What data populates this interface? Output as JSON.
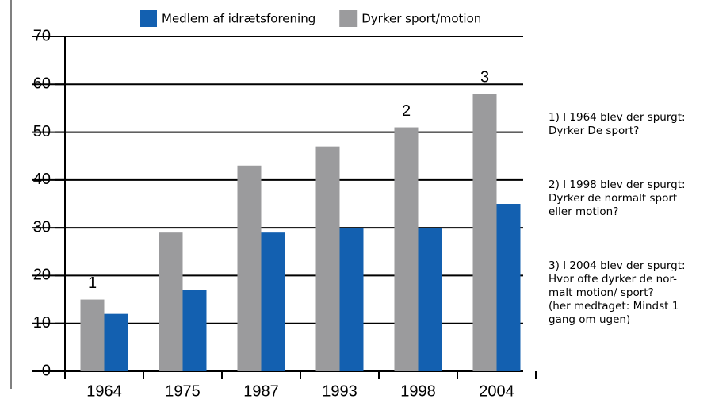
{
  "chart_data": {
    "type": "bar",
    "categories": [
      "1964",
      "1975",
      "1987",
      "1993",
      "1998",
      "2004"
    ],
    "series": [
      {
        "name": "Medlem af idrætsforening",
        "color": "#1360b0",
        "values": [
          12,
          17,
          29,
          30,
          30,
          35
        ]
      },
      {
        "name": "Dyrker sport/motion",
        "color": "#9b9b9d",
        "values": [
          15,
          29,
          43,
          47,
          51,
          58
        ]
      }
    ],
    "ylim": [
      0,
      70
    ],
    "yticks": [
      0,
      10,
      20,
      30,
      40,
      50,
      60,
      70
    ],
    "grid": true,
    "annotations": [
      {
        "text": "1",
        "x": "1964"
      },
      {
        "text": "2",
        "x": "1998"
      },
      {
        "text": "3",
        "x": "2004"
      }
    ],
    "notes": [
      [
        "1)  I 1964 blev der spurgt:",
        "Dyrker De sport?"
      ],
      [
        "2) I 1998 blev der spurgt:",
        "Dyrker de normalt sport",
        "eller motion?"
      ],
      [
        "3) I 2004 blev der spurgt:",
        "Hvor ofte dyrker de nor-",
        "malt motion/ sport?",
        "(her medtaget: Mindst 1",
        "gang om ugen)"
      ]
    ]
  }
}
